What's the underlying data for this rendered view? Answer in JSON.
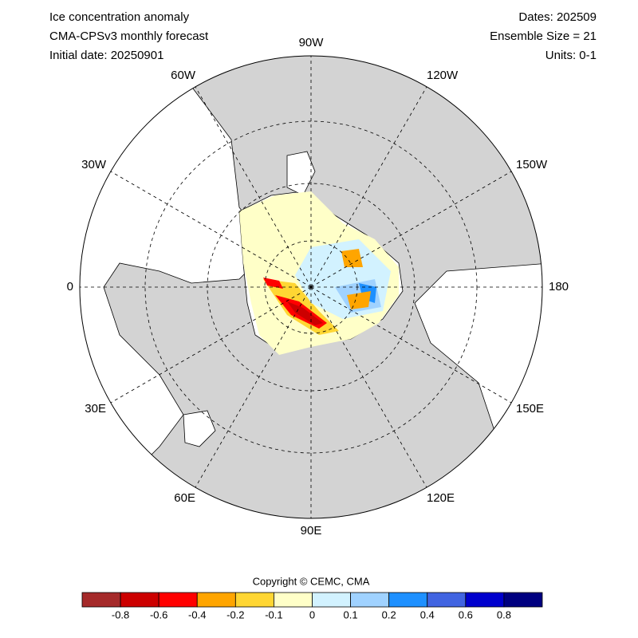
{
  "header": {
    "left": [
      "Ice concentration anomaly",
      "CMA-CPSv3 monthly forecast",
      "Initial date: 20250901"
    ],
    "right": [
      "Dates: 202509",
      "Ensemble Size = 21",
      "Units: 0-1"
    ]
  },
  "map": {
    "longitude_labels": [
      "0",
      "30W",
      "60W",
      "90W",
      "120W",
      "150W",
      "180",
      "150E",
      "120E",
      "90E",
      "60E",
      "30E"
    ]
  },
  "copyright": "Copyright © CEMC, CMA",
  "colorbar": {
    "levels": [
      -0.8,
      -0.6,
      -0.4,
      -0.2,
      -0.1,
      0,
      0.1,
      0.2,
      0.4,
      0.6,
      0.8
    ],
    "colors": [
      "#a52a2a",
      "#cc0000",
      "#ff0000",
      "#ffa500",
      "#ffd633",
      "#ffffc8",
      "#d2f2ff",
      "#a0d2ff",
      "#1e90ff",
      "#4164e1",
      "#0000cd",
      "#000080"
    ]
  }
}
